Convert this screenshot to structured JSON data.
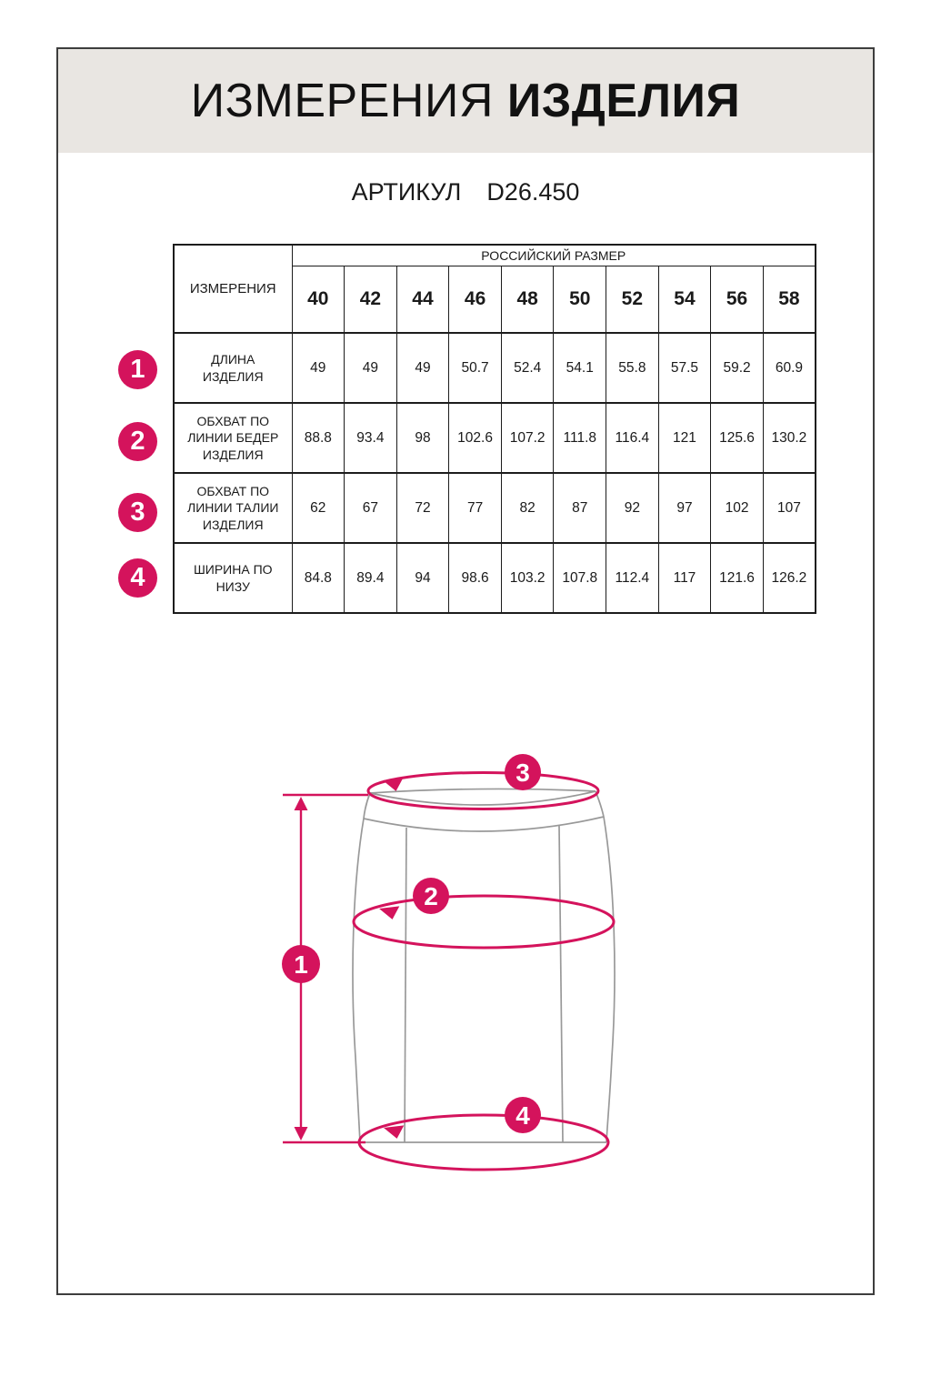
{
  "page": {
    "title_regular": "ИЗМЕРЕНИЯ",
    "title_bold": "ИЗДЕЛИЯ",
    "article_label": "АРТИКУЛ",
    "article_value": "D26.450"
  },
  "table": {
    "size_group_header": "РОССИЙСКИЙ РАЗМЕР",
    "measurements_header": "ИЗМЕРЕНИЯ",
    "sizes": [
      "40",
      "42",
      "44",
      "46",
      "48",
      "50",
      "52",
      "54",
      "56",
      "58"
    ],
    "rows": [
      {
        "num": "1",
        "label": "ДЛИНА ИЗДЕЛИЯ",
        "values": [
          "49",
          "49",
          "49",
          "50.7",
          "52.4",
          "54.1",
          "55.8",
          "57.5",
          "59.2",
          "60.9"
        ]
      },
      {
        "num": "2",
        "label": "ОБХВАТ ПО ЛИНИИ БЕДЕР ИЗДЕЛИЯ",
        "values": [
          "88.8",
          "93.4",
          "98",
          "102.6",
          "107.2",
          "111.8",
          "116.4",
          "121",
          "125.6",
          "130.2"
        ]
      },
      {
        "num": "3",
        "label": "ОБХВАТ ПО ЛИНИИ ТАЛИИ ИЗДЕЛИЯ",
        "values": [
          "62",
          "67",
          "72",
          "77",
          "82",
          "87",
          "92",
          "97",
          "102",
          "107"
        ]
      },
      {
        "num": "4",
        "label": "ШИРИНА ПО НИЗУ",
        "values": [
          "84.8",
          "89.4",
          "94",
          "98.6",
          "103.2",
          "107.8",
          "112.4",
          "117",
          "121.6",
          "126.2"
        ]
      }
    ]
  },
  "diagram": {
    "badges": [
      "1",
      "2",
      "3",
      "4"
    ]
  },
  "colors": {
    "accent": "#d4135c",
    "header_band_bg": "#e9e6e2",
    "sketch_line": "#999999",
    "table_border": "#1c1c1c"
  }
}
